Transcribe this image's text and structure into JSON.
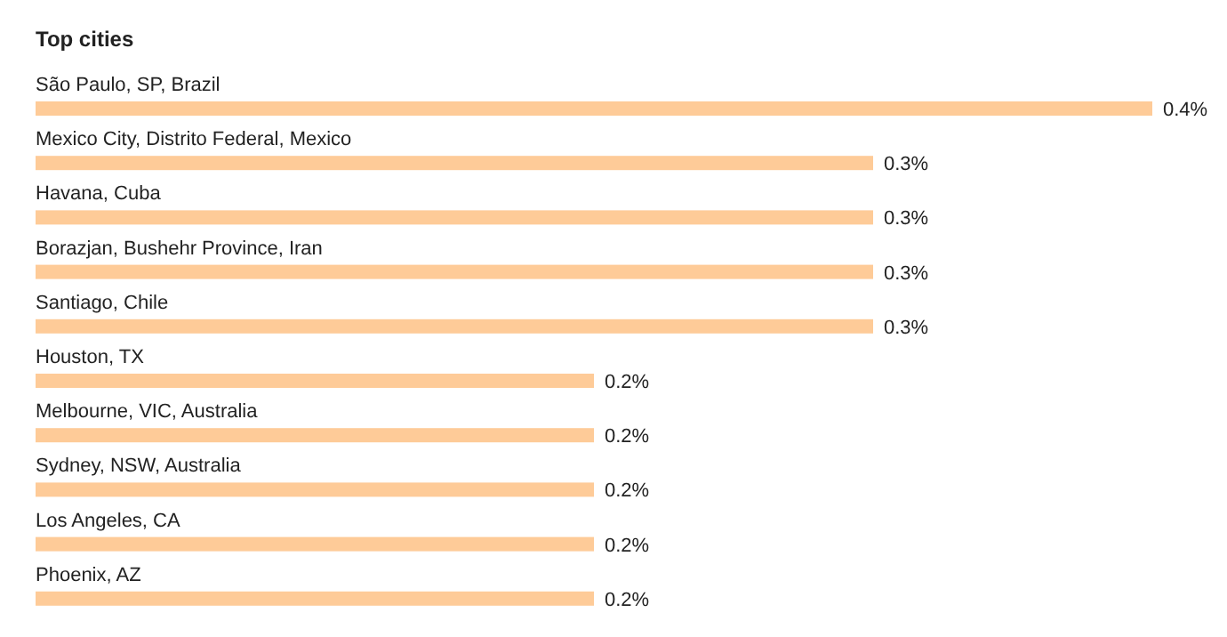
{
  "chart_data": {
    "type": "bar",
    "title": "Top cities",
    "orientation": "horizontal",
    "categories": [
      "São Paulo, SP, Brazil",
      "Mexico City, Distrito Federal, Mexico",
      "Havana, Cuba",
      "Borazjan, Bushehr Province, Iran",
      "Santiago, Chile",
      "Houston, TX",
      "Melbourne, VIC, Australia",
      "Sydney, NSW, Australia",
      "Los Angeles, CA",
      "Phoenix, AZ"
    ],
    "values": [
      0.4,
      0.3,
      0.3,
      0.3,
      0.3,
      0.2,
      0.2,
      0.2,
      0.2,
      0.2
    ],
    "value_labels": [
      "0.4%",
      "0.3%",
      "0.3%",
      "0.3%",
      "0.3%",
      "0.2%",
      "0.2%",
      "0.2%",
      "0.2%",
      "0.2%"
    ],
    "color": "#fecb98"
  }
}
